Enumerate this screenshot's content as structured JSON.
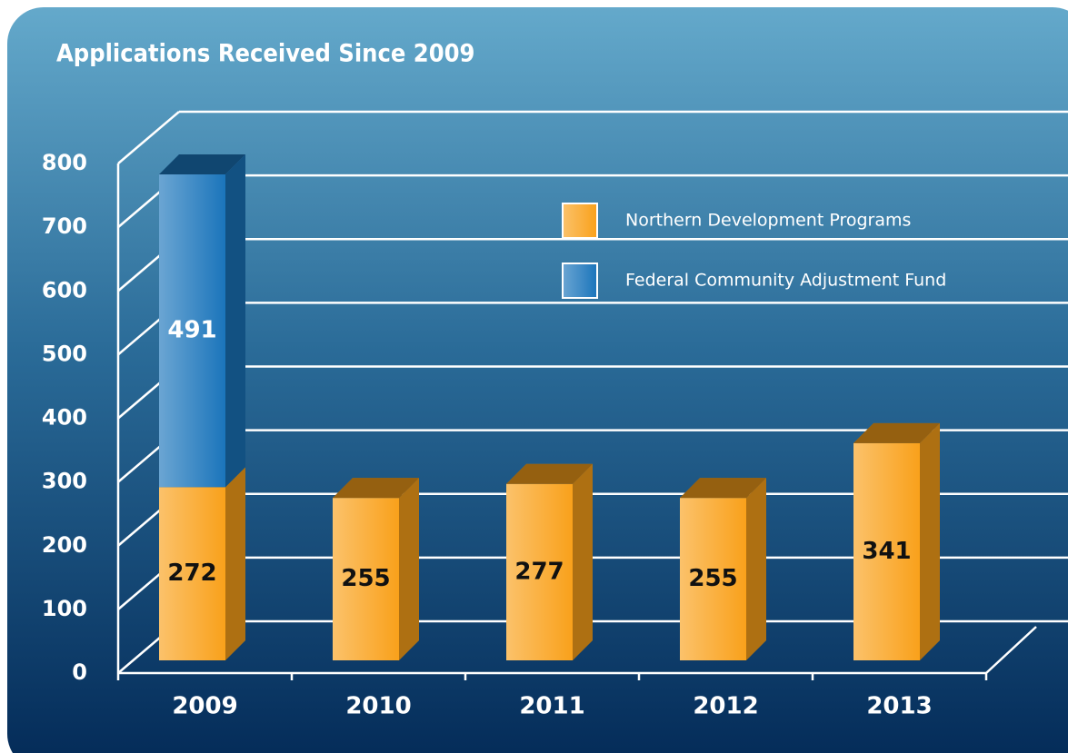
{
  "chart_data": {
    "type": "bar",
    "stacked": true,
    "title": "Applications Received Since 2009",
    "categories": [
      "2009",
      "2010",
      "2011",
      "2012",
      "2013"
    ],
    "series": [
      {
        "name": "Northern Development Programs",
        "color": "#f9a11b",
        "values": [
          272,
          255,
          277,
          255,
          341
        ]
      },
      {
        "name": "Federal Community Adjustment Fund",
        "color": "#1b75bb",
        "values": [
          491,
          null,
          null,
          null,
          null
        ]
      }
    ],
    "ylim": [
      0,
      800
    ],
    "yticks": [
      0,
      100,
      200,
      300,
      400,
      500,
      600,
      700,
      800
    ],
    "grid": true
  }
}
